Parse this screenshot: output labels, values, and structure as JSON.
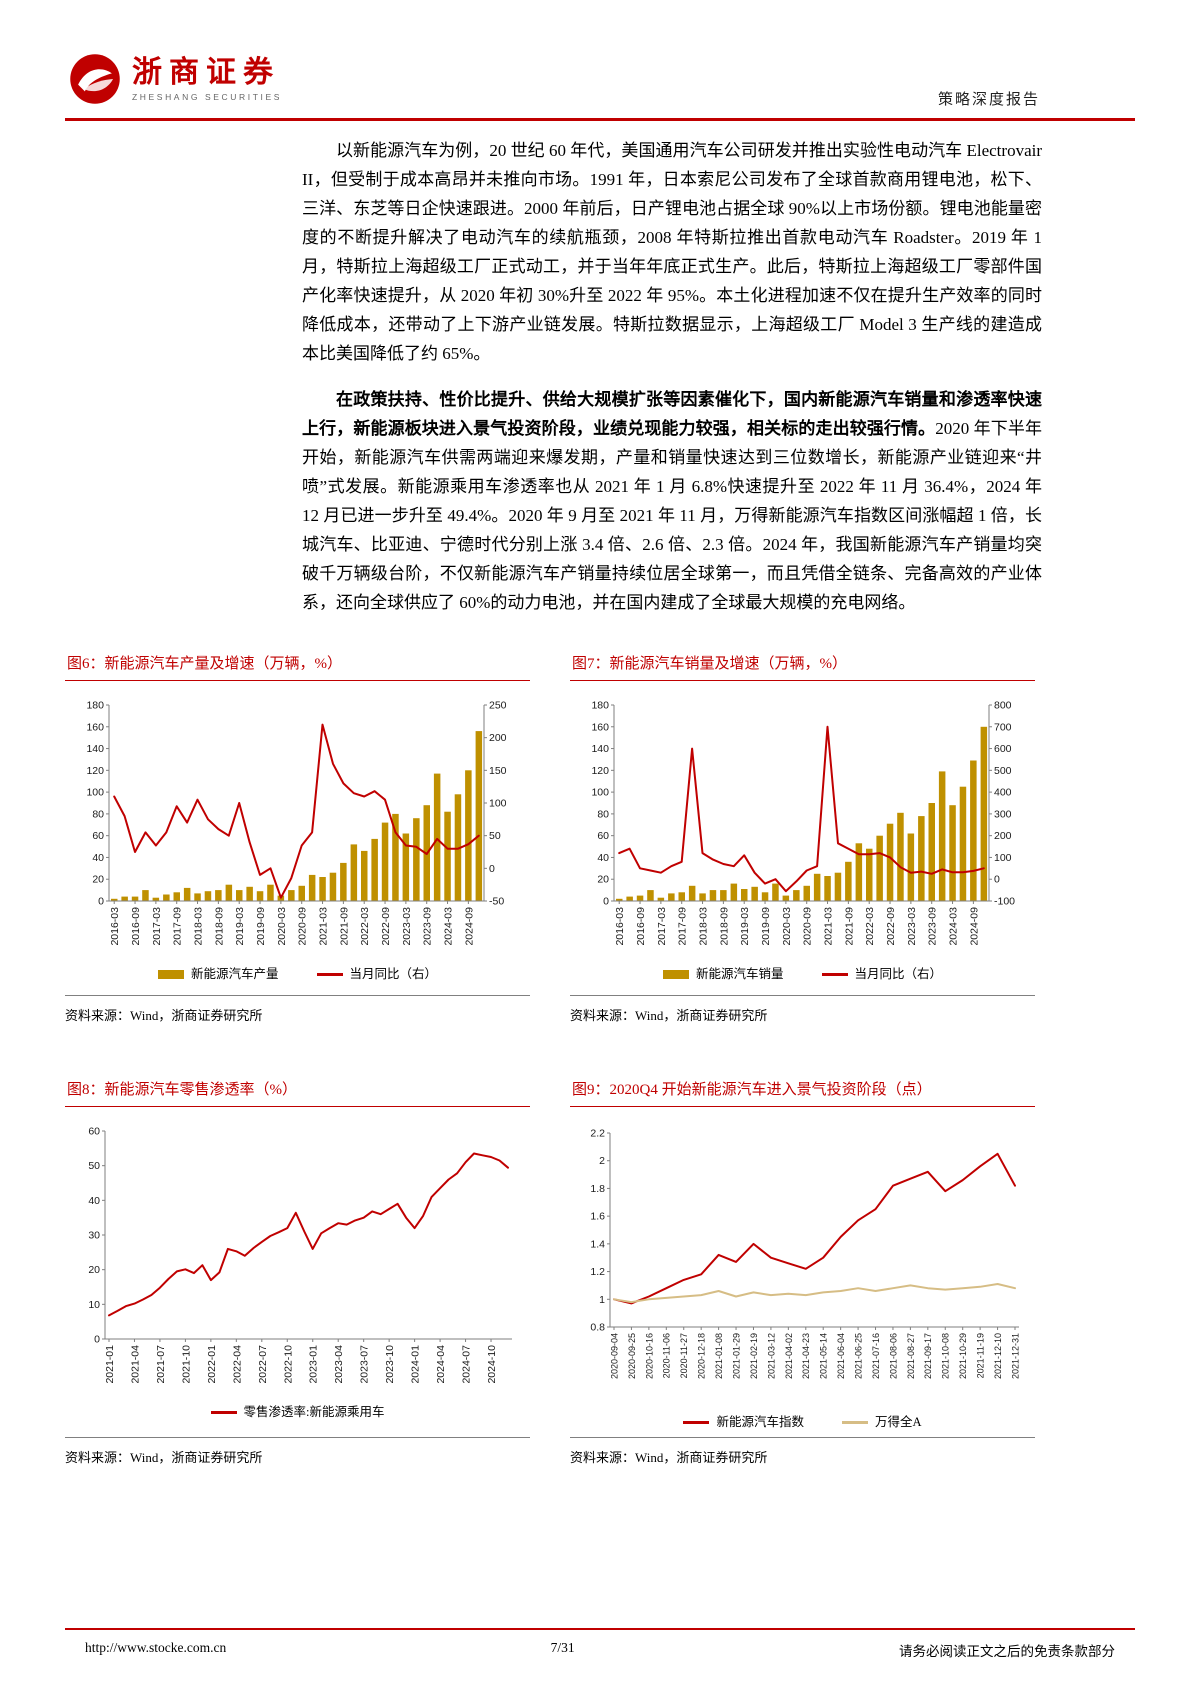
{
  "header": {
    "logo_cn": "浙商证券",
    "logo_en": "ZHESHANG SECURITIES",
    "report_type": "策略深度报告"
  },
  "body": {
    "p1": "以新能源汽车为例，20 世纪 60 年代，美国通用汽车公司研发并推出实验性电动汽车 Electrovair II，但受制于成本高昂并未推向市场。1991 年，日本索尼公司发布了全球首款商用锂电池，松下、三洋、东芝等日企快速跟进。2000 年前后，日产锂电池占据全球 90%以上市场份额。锂电池能量密度的不断提升解决了电动汽车的续航瓶颈，2008 年特斯拉推出首款电动汽车 Roadster。2019 年 1 月，特斯拉上海超级工厂正式动工，并于当年年底正式生产。此后，特斯拉上海超级工厂零部件国产化率快速提升，从 2020 年初 30%升至 2022 年 95%。本土化进程加速不仅在提升生产效率的同时降低成本，还带动了上下游产业链发展。特斯拉数据显示，上海超级工厂 Model 3 生产线的建造成本比美国降低了约 65%。",
    "p2_bold": "在政策扶持、性价比提升、供给大规模扩张等因素催化下，国内新能源汽车销量和渗透率快速上行，新能源板块进入景气投资阶段，业绩兑现能力较强，相关标的走出较强行情。",
    "p2_rest": "2020 年下半年开始，新能源汽车供需两端迎来爆发期，产量和销量快速达到三位数增长，新能源产业链迎来“井喷”式发展。新能源乘用车渗透率也从 2021 年 1 月 6.8%快速提升至 2022 年 11 月 36.4%，2024 年 12 月已进一步升至 49.4%。2020 年 9 月至 2021 年 11 月，万得新能源汽车指数区间涨幅超 1 倍，长城汽车、比亚迪、宁德时代分别上涨 3.4 倍、2.6 倍、2.3 倍。2024 年，我国新能源汽车产销量均突破千万辆级台阶，不仅新能源汽车产销量持续位居全球第一，而且凭借全链条、完备高效的产业体系，还向全球供应了 60%的动力电池，并在国内建成了全球最大规模的充电网络。"
  },
  "chart_data": [
    {
      "type": "bar+line dual axis",
      "title": "图6：新能源汽车产量及增速（万辆，%）",
      "x_tick_labels": [
        "2016-03",
        "2016-09",
        "2017-03",
        "2017-09",
        "2018-03",
        "2018-09",
        "2019-03",
        "2019-09",
        "2020-03",
        "2020-09",
        "2021-03",
        "2021-09",
        "2022-03",
        "2022-09",
        "2023-03",
        "2023-09",
        "2024-03",
        "2024-09"
      ],
      "x_tick_step": 2,
      "left_axis": {
        "min": 0,
        "max": 180,
        "ticks": [
          0,
          20,
          40,
          60,
          80,
          100,
          120,
          140,
          160,
          180
        ]
      },
      "right_axis": {
        "min": -50,
        "max": 250,
        "ticks": [
          -50,
          0,
          50,
          100,
          150,
          200,
          250
        ]
      },
      "bars": {
        "name": "新能源汽车产量",
        "color": "#BF9000",
        "values": [
          2,
          4,
          4,
          10,
          3,
          6,
          8,
          12,
          7,
          9,
          10,
          15,
          10,
          13,
          9,
          15,
          5,
          10,
          14,
          24,
          22,
          26,
          35,
          52,
          46,
          57,
          72,
          80,
          62,
          76,
          88,
          117,
          82,
          98,
          120,
          156
        ]
      },
      "lines": [
        {
          "name": "当月同比（右）",
          "color": "#C00000",
          "axis": "right",
          "values": [
            110,
            80,
            25,
            55,
            35,
            55,
            95,
            70,
            105,
            75,
            60,
            50,
            100,
            40,
            -10,
            0,
            -45,
            -15,
            35,
            55,
            220,
            160,
            130,
            115,
            110,
            118,
            105,
            55,
            35,
            33,
            22,
            45,
            30,
            30,
            37,
            50
          ]
        }
      ],
      "source": "资料来源：Wind，浙商证券研究所"
    },
    {
      "type": "bar+line dual axis",
      "title": "图7：新能源汽车销量及增速（万辆，%）",
      "x_tick_labels": [
        "2016-03",
        "2016-09",
        "2017-03",
        "2017-09",
        "2018-03",
        "2018-09",
        "2019-03",
        "2019-09",
        "2020-03",
        "2020-09",
        "2021-03",
        "2021-09",
        "2022-03",
        "2022-09",
        "2023-03",
        "2023-09",
        "2024-03",
        "2024-09"
      ],
      "x_tick_step": 2,
      "left_axis": {
        "min": 0,
        "max": 180,
        "ticks": [
          0,
          20,
          40,
          60,
          80,
          100,
          120,
          140,
          160,
          180
        ]
      },
      "right_axis": {
        "min": -100,
        "max": 800,
        "ticks": [
          -100,
          0,
          100,
          200,
          300,
          400,
          500,
          600,
          700,
          800
        ]
      },
      "bars": {
        "name": "新能源汽车销量",
        "color": "#BF9000",
        "values": [
          2,
          4,
          5,
          10,
          3,
          7,
          8,
          14,
          7,
          10,
          10,
          16,
          11,
          13,
          8,
          16,
          5,
          10,
          14,
          25,
          23,
          26,
          36,
          53,
          48,
          60,
          71,
          81,
          62,
          78,
          90,
          119,
          88,
          105,
          129,
          160
        ]
      },
      "lines": [
        {
          "name": "当月同比（右）",
          "color": "#C00000",
          "axis": "right",
          "values": [
            120,
            140,
            50,
            40,
            30,
            60,
            80,
            600,
            120,
            90,
            70,
            60,
            110,
            30,
            -20,
            0,
            -55,
            -10,
            40,
            60,
            700,
            165,
            140,
            115,
            115,
            120,
            100,
            55,
            30,
            35,
            25,
            45,
            32,
            32,
            38,
            50
          ]
        }
      ],
      "source": "资料来源：Wind，浙商证券研究所"
    },
    {
      "type": "line",
      "title": "图8：新能源汽车零售渗透率（%）",
      "x_tick_labels": [
        "2021-01",
        "2021-04",
        "2021-07",
        "2021-10",
        "2022-01",
        "2022-04",
        "2022-07",
        "2022-10",
        "2023-01",
        "2023-04",
        "2023-07",
        "2023-10",
        "2024-01",
        "2024-04",
        "2024-07",
        "2024-10"
      ],
      "x_tick_step": 3,
      "left_axis": {
        "min": 0,
        "max": 60,
        "ticks": [
          0,
          10,
          20,
          30,
          40,
          50,
          60
        ]
      },
      "lines": [
        {
          "name": "零售渗透率:新能源乘用车",
          "color": "#C00000",
          "axis": "left",
          "values": [
            6.8,
            8.1,
            9.5,
            10.2,
            11.4,
            12.7,
            14.8,
            17.3,
            19.5,
            20.1,
            19.0,
            21.3,
            17.0,
            19.2,
            26.0,
            25.3,
            24.0,
            26.2,
            28.0,
            29.7,
            30.8,
            32.0,
            36.4,
            31.0,
            26.0,
            30.5,
            32.0,
            33.4,
            33.0,
            34.2,
            35.0,
            36.8,
            36.0,
            37.5,
            39.0,
            35.0,
            32.0,
            35.5,
            41.0,
            43.5,
            46.0,
            47.8,
            51.0,
            53.5,
            53.0,
            52.5,
            51.5,
            49.4
          ]
        }
      ],
      "source": "资料来源：Wind，浙商证券研究所"
    },
    {
      "type": "line",
      "title": "图9：2020Q4 开始新能源汽车进入景气投资阶段（点）",
      "x_tick_labels": [
        "2020-09-04",
        "2020-09-25",
        "2020-10-16",
        "2020-11-06",
        "2020-11-27",
        "2020-12-18",
        "2021-01-08",
        "2021-01-29",
        "2021-02-19",
        "2021-03-12",
        "2021-04-02",
        "2021-04-23",
        "2021-05-14",
        "2021-06-04",
        "2021-06-25",
        "2021-07-16",
        "2021-08-06",
        "2021-08-27",
        "2021-09-17",
        "2021-10-08",
        "2021-10-29",
        "2021-11-19",
        "2021-12-10",
        "2021-12-31"
      ],
      "x_tick_step": 1,
      "left_axis": {
        "min": 0.8,
        "max": 2.2,
        "ticks": [
          0.8,
          1,
          1.2,
          1.4,
          1.6,
          1.8,
          2,
          2.2
        ]
      },
      "lines": [
        {
          "name": "新能源汽车指数",
          "color": "#C00000",
          "axis": "left",
          "values": [
            1.0,
            0.97,
            1.02,
            1.08,
            1.14,
            1.18,
            1.32,
            1.27,
            1.4,
            1.3,
            1.26,
            1.22,
            1.3,
            1.45,
            1.57,
            1.65,
            1.82,
            1.87,
            1.92,
            1.78,
            1.86,
            1.96,
            2.05,
            1.82
          ]
        },
        {
          "name": "万得全A",
          "color": "#D6BD85",
          "axis": "left",
          "values": [
            1.0,
            0.98,
            1.0,
            1.01,
            1.02,
            1.03,
            1.06,
            1.02,
            1.05,
            1.03,
            1.04,
            1.03,
            1.05,
            1.06,
            1.08,
            1.06,
            1.08,
            1.1,
            1.08,
            1.07,
            1.08,
            1.09,
            1.11,
            1.08
          ]
        }
      ],
      "source": "资料来源：Wind，浙商证券研究所"
    }
  ],
  "footer": {
    "url": "http://www.stocke.com.cn",
    "page": "7/31",
    "disclaimer": "请务必阅读正文之后的免责条款部分"
  },
  "colors": {
    "accent_red": "#C00000",
    "bar_gold": "#BF9000",
    "benchmark_tan": "#D6BD85"
  }
}
